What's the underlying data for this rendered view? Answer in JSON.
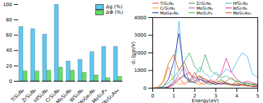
{
  "chart_data": [
    {
      "type": "bar",
      "categories": [
        "TiSi₂N₄",
        "ZrSi₂N₄",
        "HfSi₂N₄",
        "CrSi₂N₄",
        "MoSi₂N₄",
        "WSi₂N₄",
        "MoGe₂N₄",
        "MoSi₂P₄",
        "MoSi₂As₄"
      ],
      "series": [
        {
          "name": "Δg (%)",
          "color": "#5ec8f0",
          "values": [
            71,
            68,
            61,
            100,
            26,
            28,
            38,
            45,
            45
          ]
        },
        {
          "name": "ΔΦ (%)",
          "color": "#66dd66",
          "values": [
            13,
            13,
            14,
            18,
            14,
            11,
            8,
            4,
            6
          ]
        }
      ],
      "ylim": [
        0,
        100
      ],
      "yticks": [
        0,
        20,
        40,
        60,
        80,
        100
      ],
      "legend": "upper right"
    },
    {
      "type": "line",
      "x": [
        0,
        0.25,
        0.5,
        0.75,
        1,
        1.25,
        1.5,
        1.75,
        2,
        2.25,
        2.5,
        2.75,
        3,
        3.25,
        3.5,
        3.75,
        4,
        4.25,
        4.5,
        4.75,
        5
      ],
      "x_label": "Energy(eV)",
      "y_label": "dᵢⱼ (pm/V)",
      "series": [
        {
          "name": "TiSi₂N₄",
          "color": "#e8474b",
          "values": [
            0,
            0,
            20,
            80,
            300,
            600,
            200,
            400,
            900,
            300,
            200,
            500,
            300,
            200,
            400,
            600,
            300,
            200,
            300,
            200,
            150
          ]
        },
        {
          "name": "ZrSi₂N₄",
          "color": "#2ca02c",
          "values": [
            0,
            0,
            10,
            50,
            200,
            500,
            800,
            300,
            400,
            700,
            300,
            200,
            300,
            500,
            300,
            200,
            400,
            300,
            200,
            250,
            200
          ]
        },
        {
          "name": "HfSi₂N₄",
          "color": "#4aa8e8",
          "values": [
            0,
            0,
            30,
            100,
            400,
            3800,
            600,
            500,
            700,
            1200,
            800,
            600,
            900,
            700,
            1100,
            900,
            1500,
            2000,
            1800,
            800,
            600
          ]
        },
        {
          "name": "CrSi₂N₄",
          "color": "#f39c12",
          "values": [
            0,
            50,
            300,
            1200,
            400,
            200,
            300,
            500,
            300,
            200,
            400,
            300,
            200,
            300,
            200,
            150,
            200,
            150,
            100,
            150,
            100
          ]
        },
        {
          "name": "MoSi₂N₄",
          "color": "#9b59b6",
          "values": [
            0,
            0,
            0,
            100,
            300,
            800,
            1200,
            400,
            600,
            500,
            300,
            400,
            300,
            200,
            300,
            200,
            150,
            200,
            150,
            100,
            100
          ]
        },
        {
          "name": "WSi₂N₄",
          "color": "#e91e8c",
          "values": [
            0,
            0,
            0,
            50,
            200,
            500,
            700,
            900,
            400,
            600,
            500,
            300,
            400,
            800,
            1700,
            900,
            500,
            300,
            400,
            300,
            200
          ]
        },
        {
          "name": "MoGe₂N₄",
          "color": "#1a1aa0",
          "values": [
            0,
            0,
            100,
            500,
            1500,
            3100,
            700,
            400,
            300,
            500,
            400,
            300,
            200,
            300,
            250,
            200,
            150,
            200,
            150,
            100,
            100
          ]
        },
        {
          "name": "MoSi₂P₄",
          "color": "#27ae60",
          "values": [
            0,
            0,
            100,
            300,
            600,
            1000,
            1500,
            2000,
            1200,
            900,
            1900,
            1000,
            800,
            600,
            700,
            500,
            400,
            300,
            300,
            200,
            200
          ]
        },
        {
          "name": "MoSi₂As₄",
          "color": "#d35400",
          "values": [
            0,
            50,
            400,
            1400,
            1900,
            1000,
            1500,
            800,
            600,
            700,
            500,
            400,
            300,
            400,
            300,
            200,
            250,
            200,
            150,
            100,
            100
          ]
        }
      ],
      "xlim": [
        0,
        5
      ],
      "xticks": [
        0,
        1,
        2,
        3,
        4,
        5
      ],
      "ylim": [
        0,
        4000
      ],
      "yticks": [
        0,
        1000,
        2000,
        3000,
        4000
      ],
      "legend": "top"
    }
  ]
}
